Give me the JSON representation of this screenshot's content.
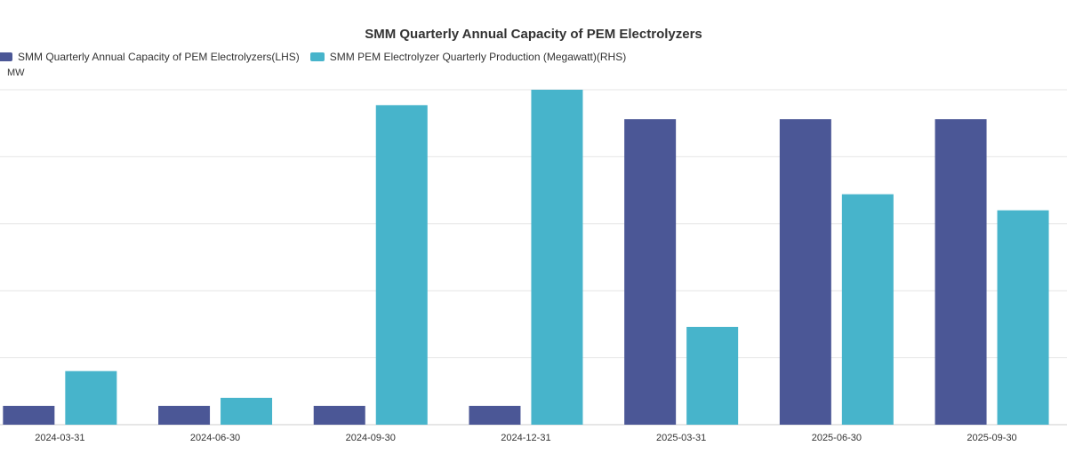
{
  "chart_data": {
    "type": "bar",
    "title": "SMM Quarterly Annual Capacity of PEM Electrolyzers",
    "ylabel": "MW",
    "categories": [
      "2024-03-31",
      "2024-06-30",
      "2024-09-30",
      "2024-12-31",
      "2025-03-31",
      "2025-06-30",
      "2025-09-30"
    ],
    "series": [
      {
        "name": "SMM Quarterly Annual Capacity of PEM Electrolyzers(LHS)",
        "color": "#4B5796",
        "values": [
          2.8,
          2.8,
          2.8,
          2.8,
          45.6,
          45.6,
          45.6
        ]
      },
      {
        "name": "SMM PEM Electrolyzer Quarterly Production (Megawatt)(RHS)",
        "color": "#47B4CB",
        "values": [
          8,
          4,
          47.7,
          50,
          14.6,
          34.4,
          32
        ]
      }
    ],
    "ylim": [
      0,
      50
    ],
    "grid": true,
    "legend": "top-left"
  }
}
